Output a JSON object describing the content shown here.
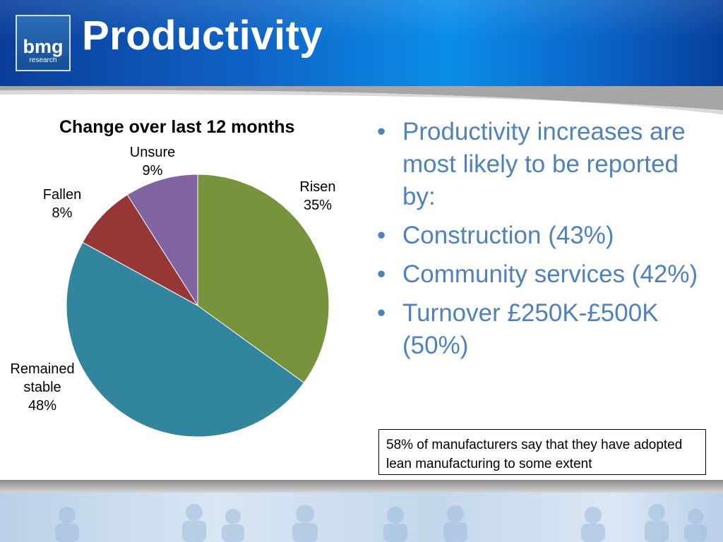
{
  "header": {
    "logo_word": "bmg",
    "logo_sub": "research",
    "title": "Productivity"
  },
  "colors": {
    "risen": "#77933c",
    "remained_stable": "#31859c",
    "fallen": "#953735",
    "unsure": "#8064a2",
    "bullet_text": "#4f81bd",
    "header_blue": "#0f63c6"
  },
  "chart_data": {
    "type": "pie",
    "title": "Change over last 12 months",
    "slices": [
      {
        "label": "Risen",
        "value": 35,
        "value_label": "35%",
        "color": "#77933c"
      },
      {
        "label": "Remained stable",
        "value": 48,
        "value_label": "48%",
        "color": "#31859c"
      },
      {
        "label": "Fallen",
        "value": 8,
        "value_label": "8%",
        "color": "#953735"
      },
      {
        "label": "Unsure",
        "value": 9,
        "value_label": "9%",
        "color": "#8064a2"
      }
    ]
  },
  "bullets": [
    "Productivity increases are most likely to be reported by:",
    "Construction (43%)",
    "Community services (42%)",
    "Turnover £250K-£500K (50%)"
  ],
  "note": "58% of manufacturers say that they have adopted lean manufacturing to some extent"
}
